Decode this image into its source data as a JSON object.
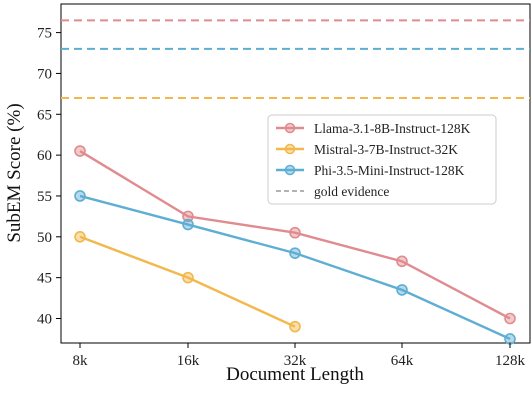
{
  "chart_data": {
    "type": "line",
    "title": "",
    "xlabel": "Document Length",
    "ylabel": "SubEM Score (%)",
    "categories": [
      "8k",
      "16k",
      "32k",
      "64k",
      "128k"
    ],
    "ylim": [
      37,
      78.5
    ],
    "yticks": [
      40,
      45,
      50,
      55,
      60,
      65,
      70,
      75
    ],
    "grid": false,
    "legend_position": "center-right",
    "series": [
      {
        "name": "Llama-3.1-8B-Instruct-128K",
        "color": "#e08b8f",
        "values": [
          60.5,
          52.5,
          50.5,
          47.0,
          40.0
        ],
        "gold": 76.5
      },
      {
        "name": "Mistral-3-7B-Instruct-32K",
        "color": "#f2b84b",
        "values": [
          50.0,
          45.0,
          39.0,
          null,
          null
        ],
        "gold": 67.0
      },
      {
        "name": "Phi-3.5-Mini-Instruct-128K",
        "color": "#5eaed4",
        "values": [
          55.0,
          51.5,
          48.0,
          43.5,
          37.5
        ],
        "gold": 73.0
      }
    ],
    "gold_legend": {
      "name": "gold evidence",
      "color": "#999999"
    }
  }
}
